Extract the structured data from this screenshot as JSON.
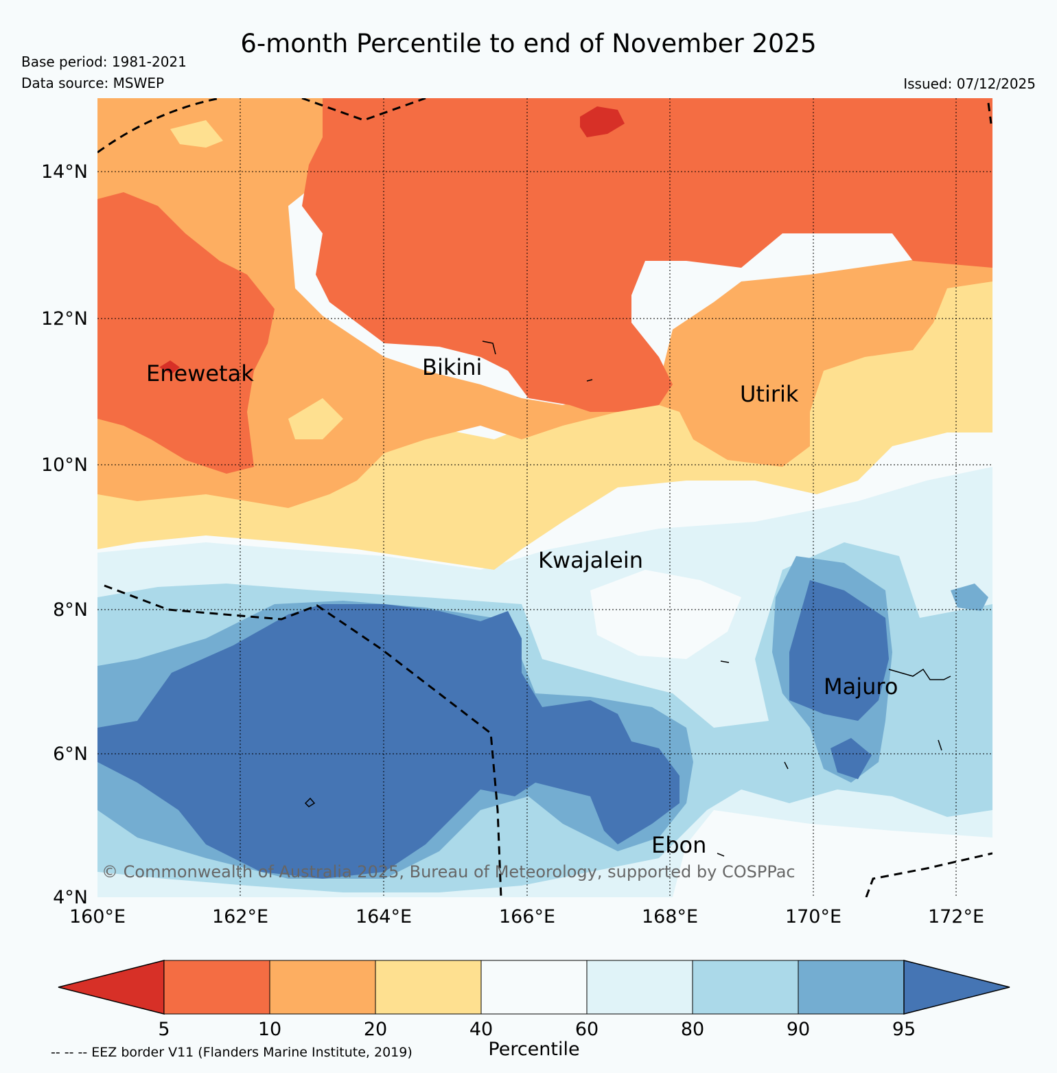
{
  "header": {
    "title": "6-month Percentile to end of November 2025",
    "base_period": "Base period: 1981-2021",
    "data_source": "Data source: MSWEP",
    "issued": "Issued: 07/12/2025"
  },
  "map": {
    "lat_ticks": [
      "14°N",
      "12°N",
      "10°N",
      "8°N",
      "6°N",
      "4°N"
    ],
    "lon_ticks": [
      "160°E",
      "162°E",
      "164°E",
      "166°E",
      "168°E",
      "170°E",
      "172°E"
    ],
    "places": [
      "Enewetak",
      "Bikini",
      "Utirik",
      "Kwajalein",
      "Majuro",
      "Ebon"
    ],
    "copyright": "© Commonwealth of Australia 2025, Bureau of Meteorology, supported by COSPPac"
  },
  "legend": {
    "ticks": [
      "5",
      "10",
      "20",
      "40",
      "60",
      "80",
      "90",
      "95"
    ],
    "label": "Percentile",
    "eez_note": "-- -- -- EEZ border V11 (Flanders Marine Institute, 2019)",
    "colors": [
      "#d73027",
      "#f46d43",
      "#fdae61",
      "#fee090",
      "#f7fbfc",
      "#e0f3f8",
      "#abd9e9",
      "#74add1",
      "#4575b4"
    ]
  }
}
